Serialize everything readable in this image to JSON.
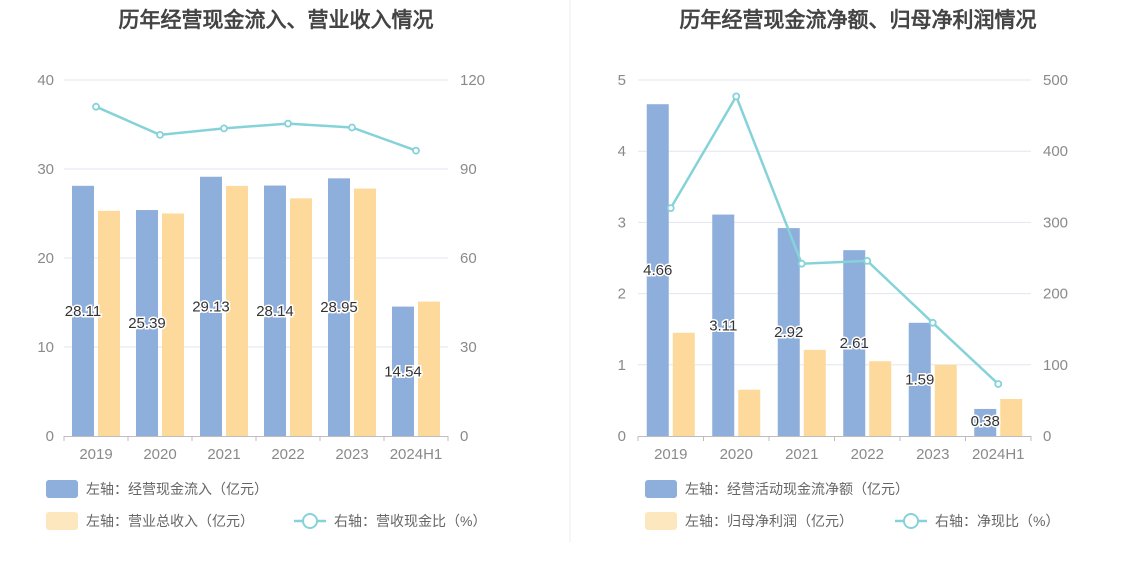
{
  "colors": {
    "bar_primary": "#8eaedb",
    "bar_secondary": "#fdd99b",
    "line": "#85d3d8",
    "legend_secondary": "#fde7bf",
    "grid": "#e3e6ef",
    "axis": "#bdbdbd",
    "divider": "#eeeeee"
  },
  "chart_data": [
    {
      "type": "bar",
      "title": "历年经营现金流入、营业收入情况",
      "categories": [
        "2019",
        "2020",
        "2021",
        "2022",
        "2023",
        "2024H1"
      ],
      "series": [
        {
          "name": "左轴：经营现金流入（亿元）",
          "axis": "left",
          "type": "bar",
          "values": [
            28.11,
            25.39,
            29.13,
            28.14,
            28.95,
            14.54
          ],
          "data_labels": [
            "28.11",
            "25.39",
            "29.13",
            "28.14",
            "28.95",
            "14.54"
          ]
        },
        {
          "name": "左轴：营业总收入（亿元）",
          "axis": "left",
          "type": "bar",
          "values": [
            25.3,
            25.0,
            28.1,
            26.7,
            27.8,
            15.1
          ]
        },
        {
          "name": "右轴：营收现金比（%）",
          "axis": "right",
          "type": "line",
          "values": [
            111.0,
            101.5,
            103.7,
            105.3,
            104.0,
            96.2
          ]
        }
      ],
      "y_left": {
        "min": 0,
        "max": 40,
        "ticks": [
          "0",
          "10",
          "20",
          "30",
          "40"
        ]
      },
      "y_right": {
        "min": 0,
        "max": 120,
        "ticks": [
          "0",
          "30",
          "60",
          "90",
          "120"
        ]
      },
      "grid": true,
      "legend_position": "bottom"
    },
    {
      "type": "bar",
      "title": "历年经营现金流净额、归母净利润情况",
      "categories": [
        "2019",
        "2020",
        "2021",
        "2022",
        "2023",
        "2024H1"
      ],
      "series": [
        {
          "name": "左轴：经营活动现金流净额（亿元）",
          "axis": "left",
          "type": "bar",
          "values": [
            4.66,
            3.11,
            2.92,
            2.61,
            1.59,
            0.38
          ],
          "data_labels": [
            "4.66",
            "3.11",
            "2.92",
            "2.61",
            "1.59",
            "0.38"
          ]
        },
        {
          "name": "左轴：归母净利润（亿元）",
          "axis": "left",
          "type": "bar",
          "values": [
            1.45,
            0.65,
            1.21,
            1.05,
            1.0,
            0.52
          ]
        },
        {
          "name": "右轴：净现比（%）",
          "axis": "right",
          "type": "line",
          "values": [
            320,
            477,
            242,
            246,
            159,
            73
          ]
        }
      ],
      "y_left": {
        "min": 0,
        "max": 5,
        "ticks": [
          "0",
          "1",
          "2",
          "3",
          "4",
          "5"
        ]
      },
      "y_right": {
        "min": 0,
        "max": 500,
        "ticks": [
          "0",
          "100",
          "200",
          "300",
          "400",
          "500"
        ]
      },
      "grid": true,
      "legend_position": "bottom"
    }
  ]
}
